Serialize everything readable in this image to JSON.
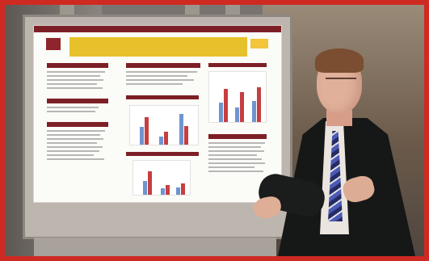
{
  "scene": {
    "description_hidden": "",
    "colors": {
      "frame": "#cf2a22",
      "poster_band": "#7d1f26",
      "poster_title": "#e7c12c",
      "series_blue": "#6f95cf",
      "series_red": "#c73e40"
    }
  },
  "poster_text": {
    "title": "",
    "subtitle": ""
  }
}
